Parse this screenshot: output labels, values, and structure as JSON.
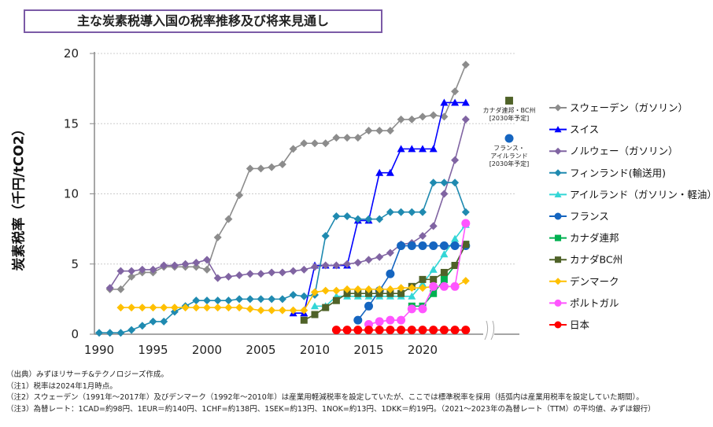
{
  "title": "主な炭素税導入国の税率推移及び将来見通し",
  "chart_data": {
    "type": "line",
    "title": "主な炭素税導入国の税率推移及び将来見通し",
    "xlabel": "",
    "ylabel": "炭素税率（千円/tCO2）",
    "xlim": [
      1990,
      2030
    ],
    "ylim": [
      0,
      20
    ],
    "x_ticks": [
      "1990",
      "1995",
      "2000",
      "2005",
      "2010",
      "2015",
      "2020"
    ],
    "y_ticks": [
      "0",
      "5",
      "10",
      "15",
      "20"
    ],
    "grid": "horizontal dotted",
    "legend_placement": "right",
    "series": [
      {
        "name": "スウェーデン（ガソリン）",
        "color": "#8c8c8c",
        "marker": "diamond",
        "start": 1991,
        "values": [
          3.2,
          3.2,
          4.1,
          4.4,
          4.4,
          4.8,
          4.8,
          4.8,
          4.8,
          4.6,
          6.9,
          8.2,
          9.9,
          11.8,
          11.8,
          11.9,
          12.1,
          13.2,
          13.6,
          13.6,
          13.6,
          14.0,
          14.0,
          14.0,
          14.5,
          14.5,
          14.5,
          15.3,
          15.3,
          15.5,
          15.6,
          15.5,
          17.3,
          19.2
        ]
      },
      {
        "name": "スイス",
        "color": "#0000ff",
        "marker": "triangle",
        "start": 2008,
        "values": [
          1.5,
          1.5,
          4.9,
          4.9,
          4.9,
          4.9,
          8.1,
          8.1,
          11.5,
          11.5,
          13.2,
          13.2,
          13.2,
          13.2,
          16.5,
          16.5,
          16.5
        ]
      },
      {
        "name": "ノルウェー（ガソリン）",
        "color": "#8064a2",
        "marker": "diamond",
        "start": 1991,
        "values": [
          3.3,
          4.5,
          4.5,
          4.6,
          4.6,
          4.9,
          4.9,
          5.0,
          5.1,
          5.3,
          4.0,
          4.1,
          4.2,
          4.3,
          4.3,
          4.4,
          4.4,
          4.5,
          4.6,
          4.8,
          4.9,
          4.9,
          5.0,
          5.1,
          5.3,
          5.5,
          5.8,
          6.4,
          6.5,
          7.0,
          7.7,
          10.0,
          12.4,
          15.3
        ]
      },
      {
        "name": "フィンランド(輸送用)",
        "color": "#1f8ab0",
        "marker": "diamond",
        "start": 1990,
        "values": [
          0.1,
          0.1,
          0.1,
          0.3,
          0.6,
          0.9,
          0.9,
          1.6,
          2.0,
          2.4,
          2.4,
          2.4,
          2.4,
          2.5,
          2.5,
          2.5,
          2.5,
          2.5,
          2.8,
          2.7,
          2.8,
          7.0,
          8.4,
          8.4,
          8.2,
          8.2,
          8.2,
          8.7,
          8.7,
          8.7,
          8.7,
          10.8,
          10.8,
          10.8,
          8.7
        ]
      },
      {
        "name": "アイルランド（ガソリン・軽油）",
        "color": "#33d6d6",
        "marker": "triangle",
        "start": 2010,
        "values": [
          2.0,
          2.0,
          2.7,
          2.7,
          2.7,
          2.7,
          2.7,
          2.7,
          2.7,
          2.7,
          3.6,
          4.6,
          5.7,
          6.8,
          7.8
        ]
      },
      {
        "name": "フランス",
        "color": "#1565c0",
        "marker": "circle",
        "start": 2014,
        "values": [
          1.0,
          2.0,
          3.1,
          4.3,
          6.3,
          6.3,
          6.3,
          6.3,
          6.3,
          6.3,
          6.3
        ]
      },
      {
        "name": "カナダ連邦",
        "color": "#00b050",
        "marker": "square",
        "start": 2019,
        "values": [
          2.0,
          2.0,
          2.9,
          3.9,
          4.9,
          6.4
        ]
      },
      {
        "name": "カナダBC州",
        "color": "#4f6228",
        "marker": "square",
        "start": 2009,
        "values": [
          1.0,
          1.4,
          1.9,
          2.4,
          2.9,
          2.9,
          2.9,
          2.9,
          2.9,
          2.9,
          3.4,
          3.9,
          3.9,
          4.4,
          4.9,
          6.4
        ]
      },
      {
        "name": "デンマーク",
        "color": "#ffc000",
        "marker": "diamond",
        "start": 1992,
        "values": [
          1.9,
          1.9,
          1.9,
          1.9,
          1.9,
          1.9,
          1.9,
          1.9,
          1.9,
          1.9,
          1.9,
          1.9,
          1.8,
          1.7,
          1.7,
          1.7,
          1.7,
          1.7,
          3.0,
          3.1,
          3.1,
          3.2,
          3.2,
          3.2,
          3.2,
          3.2,
          3.3,
          3.3,
          3.3,
          3.4,
          3.4,
          3.4,
          3.8
        ]
      },
      {
        "name": "ポルトガル",
        "color": "#ff55ff",
        "marker": "circle",
        "start": 2015,
        "values": [
          0.7,
          0.9,
          1.0,
          1.0,
          1.8,
          1.8,
          3.4,
          3.4,
          3.4,
          7.9
        ]
      },
      {
        "name": "日本",
        "color": "#ff0000",
        "marker": "circle",
        "start": 2012,
        "values": [
          0.3,
          0.3,
          0.3,
          0.3,
          0.3,
          0.3,
          0.3,
          0.3,
          0.3,
          0.3,
          0.3,
          0.3,
          0.3
        ]
      }
    ],
    "annotations": [
      {
        "label_line1": "カナダ連邦・BC州",
        "label_line2": "[2030年予定]",
        "year": 2030,
        "value": 16.6,
        "color": "#4f6228",
        "marker": "square"
      },
      {
        "label_line1": "フランス・",
        "label_line2": "アイルランド",
        "label_line3": "[2030年予定]",
        "year": 2030,
        "value": 13.9,
        "color": "#1565c0",
        "marker": "circle"
      }
    ]
  },
  "notes": [
    "（出典）みずほリサーチ&テクノロジーズ作成。",
    "（注1）税率は2024年1月時点。",
    "（注2）スウェーデン（1991年～2017年）及びデンマーク（1992年～2010年）は産業用軽減税率を設定していたが、ここでは標準税率を採用（括弧内は産業用税率を設定していた期間）。",
    "（注3）為替レート：1CAD=約98円、1EUR＝約140円、1CHF=約138円、1SEK=約13円、1NOK=約13円、1DKK＝約19円。（2021～2023年の為替レート（TTM）の平均値、みずほ銀行）"
  ]
}
